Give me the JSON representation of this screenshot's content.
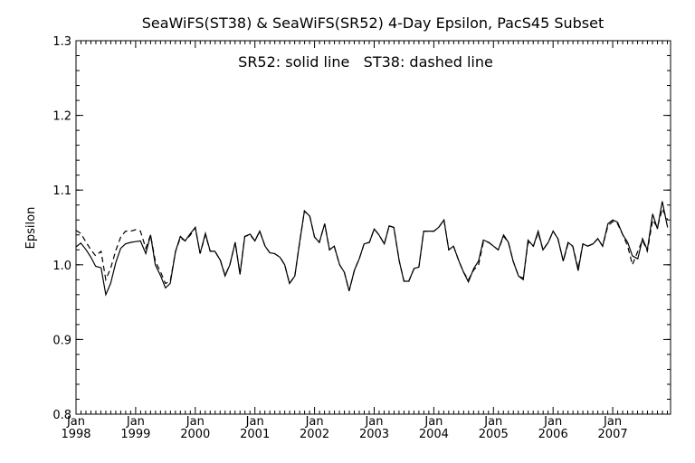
{
  "chart_data": {
    "type": "line",
    "title": "SeaWiFS(ST38) & SeaWiFS(SR52) 4-Day Epsilon, PacS45 Subset",
    "annotation": "SR52: solid line   ST38: dashed line",
    "xlabel": "",
    "ylabel": "Epsilon",
    "xlim": [
      "1998-01",
      "2007-12"
    ],
    "ylim": [
      0.8,
      1.3
    ],
    "yticks": [
      "0.8",
      "0.9",
      "1.0",
      "1.1",
      "1.2",
      "1.3"
    ],
    "xticks": [
      {
        "month": "Jan",
        "year": "1998"
      },
      {
        "month": "Jan",
        "year": "1999"
      },
      {
        "month": "Jan",
        "year": "2000"
      },
      {
        "month": "Jan",
        "year": "2001"
      },
      {
        "month": "Jan",
        "year": "2002"
      },
      {
        "month": "Jan",
        "year": "2003"
      },
      {
        "month": "Jan",
        "year": "2004"
      },
      {
        "month": "Jan",
        "year": "2005"
      },
      {
        "month": "Jan",
        "year": "2006"
      },
      {
        "month": "Jan",
        "year": "2007"
      }
    ],
    "grid": false,
    "legend": "none",
    "series": [
      {
        "name": "SR52",
        "style": "solid",
        "color": "#000000",
        "x": [
          1998.0,
          1998.08,
          1998.17,
          1998.25,
          1998.33,
          1998.42,
          1998.5,
          1998.58,
          1998.67,
          1998.75,
          1998.83,
          1998.92,
          1999.0,
          1999.08,
          1999.17,
          1999.25,
          1999.33,
          1999.42,
          1999.5,
          1999.58,
          1999.67,
          1999.75,
          1999.83,
          1999.92,
          2000.0,
          2000.08,
          2000.17,
          2000.25,
          2000.33,
          2000.42,
          2000.5,
          2000.58,
          2000.67,
          2000.75,
          2000.83,
          2000.92,
          2001.0,
          2001.08,
          2001.17,
          2001.25,
          2001.33,
          2001.42,
          2001.5,
          2001.58,
          2001.67,
          2001.75,
          2001.83,
          2001.92,
          2002.0,
          2002.08,
          2002.17,
          2002.25,
          2002.33,
          2002.42,
          2002.5,
          2002.58,
          2002.67,
          2002.75,
          2002.83,
          2002.92,
          2003.0,
          2003.08,
          2003.17,
          2003.25,
          2003.33,
          2003.42,
          2003.5,
          2003.58,
          2003.67,
          2003.75,
          2003.83,
          2003.92,
          2004.0,
          2004.08,
          2004.17,
          2004.25,
          2004.33,
          2004.42,
          2004.5,
          2004.58,
          2004.67,
          2004.75,
          2004.83,
          2004.92,
          2005.0,
          2005.08,
          2005.17,
          2005.25,
          2005.33,
          2005.42,
          2005.5,
          2005.58,
          2005.67,
          2005.75,
          2005.83,
          2005.92,
          2006.0,
          2006.08,
          2006.17,
          2006.25,
          2006.33,
          2006.42,
          2006.5,
          2006.58,
          2006.67,
          2006.75,
          2006.83,
          2006.92,
          2007.0,
          2007.08,
          2007.17,
          2007.25,
          2007.33,
          2007.42,
          2007.5,
          2007.58,
          2007.67,
          2007.75,
          2007.83,
          2007.92
        ],
        "y": [
          1.024,
          1.029,
          1.02,
          1.01,
          0.998,
          0.996,
          0.96,
          0.975,
          1.004,
          1.022,
          1.028,
          1.03,
          1.031,
          1.032,
          1.015,
          1.04,
          1.0,
          0.985,
          0.969,
          0.975,
          1.018,
          1.038,
          1.032,
          1.042,
          1.05,
          1.015,
          1.042,
          1.018,
          1.018,
          1.006,
          0.985,
          1.0,
          1.03,
          0.987,
          1.038,
          1.041,
          1.032,
          1.045,
          1.025,
          1.016,
          1.015,
          1.01,
          1.0,
          0.975,
          0.985,
          1.03,
          1.072,
          1.065,
          1.037,
          1.03,
          1.055,
          1.02,
          1.025,
          1.0,
          0.99,
          0.965,
          0.993,
          1.008,
          1.028,
          1.03,
          1.048,
          1.04,
          1.028,
          1.052,
          1.05,
          1.005,
          0.978,
          0.978,
          0.995,
          0.997,
          1.045,
          1.045,
          1.045,
          1.05,
          1.06,
          1.02,
          1.025,
          1.005,
          0.99,
          0.977,
          0.995,
          1.005,
          1.033,
          1.03,
          1.025,
          1.02,
          1.04,
          1.03,
          1.005,
          0.985,
          0.98,
          1.033,
          1.025,
          1.045,
          1.02,
          1.03,
          1.045,
          1.035,
          1.005,
          1.03,
          1.025,
          0.992,
          1.028,
          1.025,
          1.028,
          1.035,
          1.025,
          1.055,
          1.06,
          1.057,
          1.04,
          1.03,
          1.012,
          1.008,
          1.035,
          1.02,
          1.068,
          1.048,
          1.085,
          1.05
        ]
      },
      {
        "name": "ST38",
        "style": "dashed",
        "color": "#000000",
        "x": [
          1998.0,
          1998.08,
          1998.17,
          1998.25,
          1998.33,
          1998.42,
          1998.5,
          1998.58,
          1998.67,
          1998.75,
          1998.83,
          1998.92,
          1999.0,
          1999.08,
          1999.17,
          1999.25,
          1999.33,
          1999.42,
          1999.5,
          1999.58,
          1999.67,
          1999.75,
          1999.83,
          1999.92,
          2000.0,
          2000.08,
          2000.17,
          2000.25,
          2000.33,
          2000.42,
          2000.5,
          2000.58,
          2000.67,
          2000.75,
          2000.83,
          2000.92,
          2001.0,
          2001.08,
          2001.17,
          2001.25,
          2001.33,
          2001.42,
          2001.5,
          2001.58,
          2001.67,
          2001.75,
          2001.83,
          2001.92,
          2002.0,
          2002.08,
          2002.17,
          2002.25,
          2002.33,
          2002.42,
          2002.5,
          2002.58,
          2002.67,
          2002.75,
          2002.83,
          2002.92,
          2003.0,
          2003.08,
          2003.17,
          2003.25,
          2003.33,
          2003.42,
          2003.5,
          2003.58,
          2003.67,
          2003.75,
          2003.83,
          2003.92,
          2004.0,
          2004.08,
          2004.17,
          2004.25,
          2004.33,
          2004.42,
          2004.5,
          2004.58,
          2004.67,
          2004.75,
          2004.83,
          2004.92,
          2005.0,
          2005.08,
          2005.17,
          2005.25,
          2005.33,
          2005.42,
          2005.5,
          2005.58,
          2005.67,
          2005.75,
          2005.83,
          2005.92,
          2006.0,
          2006.08,
          2006.17,
          2006.25,
          2006.33,
          2006.42,
          2006.5,
          2006.58,
          2006.67,
          2006.75,
          2006.83,
          2006.92,
          2007.0,
          2007.08,
          2007.17,
          2007.25,
          2007.33,
          2007.42,
          2007.5,
          2007.58,
          2007.67,
          2007.75,
          2007.83,
          2007.92
        ],
        "y": [
          1.046,
          1.042,
          1.03,
          1.02,
          1.012,
          1.018,
          0.98,
          0.995,
          1.02,
          1.037,
          1.045,
          1.045,
          1.047,
          1.045,
          1.022,
          1.04,
          1.005,
          0.99,
          0.975,
          0.978,
          1.018,
          1.036,
          1.032,
          1.04,
          1.05,
          1.015,
          1.04,
          1.018,
          1.018,
          1.006,
          0.986,
          1.0,
          1.03,
          0.988,
          1.038,
          1.04,
          1.032,
          1.045,
          1.025,
          1.016,
          1.015,
          1.01,
          1.0,
          0.975,
          0.985,
          1.03,
          1.072,
          1.065,
          1.037,
          1.03,
          1.055,
          1.02,
          1.025,
          1.0,
          0.99,
          0.965,
          0.993,
          1.008,
          1.028,
          1.03,
          1.048,
          1.04,
          1.028,
          1.052,
          1.05,
          1.005,
          0.978,
          0.978,
          0.995,
          0.997,
          1.045,
          1.045,
          1.045,
          1.05,
          1.06,
          1.02,
          1.025,
          1.005,
          0.99,
          0.98,
          0.993,
          1.0,
          1.03,
          1.03,
          1.025,
          1.02,
          1.038,
          1.03,
          1.005,
          0.985,
          0.982,
          1.03,
          1.025,
          1.043,
          1.02,
          1.03,
          1.045,
          1.035,
          1.005,
          1.028,
          1.025,
          0.995,
          1.028,
          1.025,
          1.028,
          1.035,
          1.025,
          1.052,
          1.058,
          1.055,
          1.04,
          1.025,
          1.0,
          1.018,
          1.033,
          1.018,
          1.06,
          1.05,
          1.075,
          1.06
        ]
      }
    ]
  }
}
